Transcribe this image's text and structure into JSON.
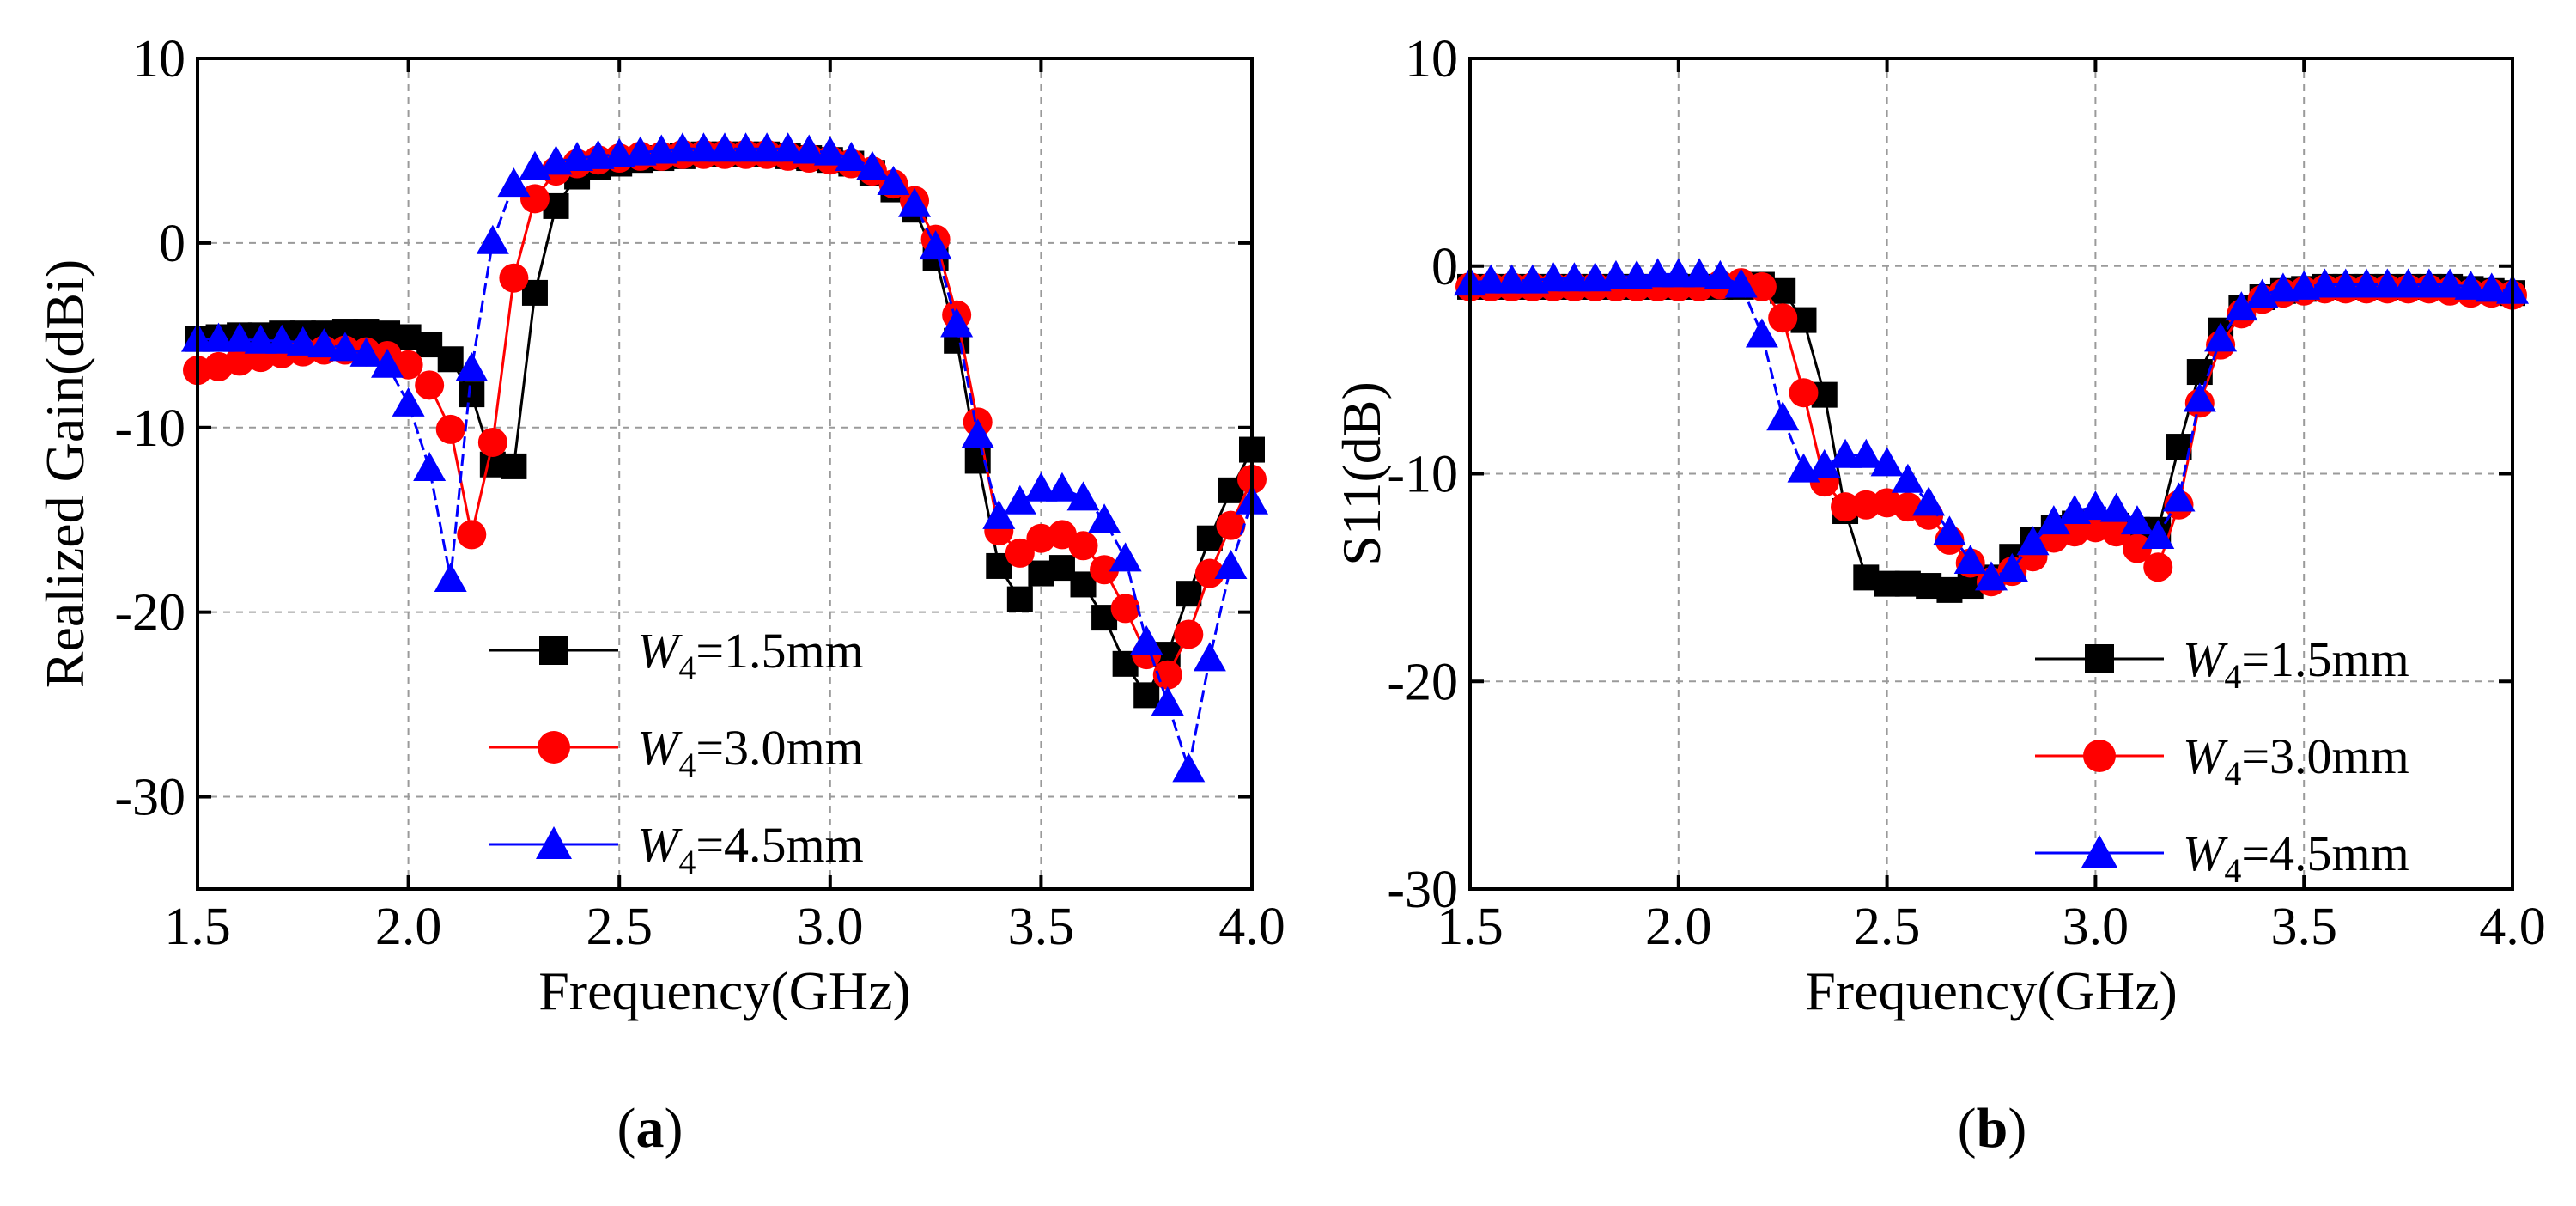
{
  "chart_data": [
    {
      "type": "line",
      "panel_label": "(a)",
      "panel_letter": "a",
      "xlabel": "Frequency(GHz)",
      "ylabel": "Realized Gain(dBi)",
      "xlim": [
        1.5,
        4.0
      ],
      "ylim": [
        -35,
        10
      ],
      "xticks": [
        "1.5",
        "2.0",
        "2.5",
        "3.0",
        "3.5",
        "4.0"
      ],
      "yticks": [
        "10",
        "0",
        "-10",
        "-20",
        "-30"
      ],
      "grid": true,
      "legend_position": "bottom-center",
      "x": [
        1.5,
        1.55,
        1.6,
        1.65,
        1.7,
        1.75,
        1.8,
        1.85,
        1.9,
        1.95,
        2.0,
        2.05,
        2.1,
        2.15,
        2.2,
        2.25,
        2.3,
        2.35,
        2.4,
        2.45,
        2.5,
        2.55,
        2.6,
        2.65,
        2.7,
        2.75,
        2.8,
        2.85,
        2.9,
        2.95,
        3.0,
        3.05,
        3.1,
        3.15,
        3.2,
        3.25,
        3.3,
        3.35,
        3.4,
        3.45,
        3.5,
        3.55,
        3.6,
        3.65,
        3.7,
        3.75,
        3.8,
        3.85,
        3.9,
        3.95,
        4.0
      ],
      "series": [
        {
          "label_var": "W",
          "label_sub": "4",
          "label_value": "=1.5mm",
          "color": "#000000",
          "marker": "square",
          "values": [
            -5.2,
            -5.1,
            -5.0,
            -5.0,
            -4.9,
            -4.9,
            -4.9,
            -4.8,
            -4.8,
            -4.9,
            -5.1,
            -5.5,
            -6.3,
            -8.2,
            -12.0,
            -12.1,
            -2.7,
            2.0,
            3.6,
            4.1,
            4.3,
            4.5,
            4.6,
            4.7,
            4.8,
            4.8,
            4.8,
            4.8,
            4.7,
            4.6,
            4.5,
            4.3,
            3.8,
            2.9,
            1.8,
            -0.8,
            -5.3,
            -11.8,
            -17.5,
            -19.3,
            -17.9,
            -17.6,
            -18.5,
            -20.3,
            -22.8,
            -24.5,
            -22.3,
            -19.0,
            -16.0,
            -13.4,
            -11.2
          ]
        },
        {
          "label_var": "W",
          "label_sub": "4",
          "label_value": "=3.0mm",
          "color": "#ff0000",
          "marker": "circle",
          "values": [
            -6.9,
            -6.7,
            -6.4,
            -6.2,
            -6.0,
            -5.9,
            -5.8,
            -5.8,
            -5.9,
            -6.1,
            -6.6,
            -7.7,
            -10.1,
            -15.8,
            -10.8,
            -1.9,
            2.4,
            3.9,
            4.3,
            4.5,
            4.6,
            4.7,
            4.7,
            4.8,
            4.8,
            4.8,
            4.8,
            4.8,
            4.7,
            4.6,
            4.5,
            4.3,
            3.9,
            3.2,
            2.3,
            0.2,
            -3.9,
            -9.7,
            -15.6,
            -16.8,
            -16.0,
            -15.8,
            -16.4,
            -17.7,
            -19.8,
            -22.3,
            -23.4,
            -21.2,
            -17.9,
            -15.3,
            -12.8
          ]
        },
        {
          "label_var": "W",
          "label_sub": "4",
          "label_value": "=4.5mm",
          "color": "#0000ff",
          "marker": "triangle",
          "values": [
            -5.2,
            -5.2,
            -5.2,
            -5.3,
            -5.3,
            -5.4,
            -5.5,
            -5.7,
            -6.0,
            -6.6,
            -8.7,
            -12.2,
            -18.2,
            -6.8,
            0.1,
            3.2,
            4.1,
            4.4,
            4.6,
            4.7,
            4.8,
            4.9,
            5.0,
            5.1,
            5.1,
            5.1,
            5.1,
            5.1,
            5.1,
            5.0,
            4.9,
            4.6,
            4.1,
            3.3,
            2.1,
            -0.2,
            -4.4,
            -10.4,
            -14.8,
            -14.0,
            -13.3,
            -13.3,
            -13.8,
            -15.0,
            -17.1,
            -21.6,
            -24.9,
            -28.5,
            -22.5,
            -17.5,
            -14.0
          ]
        }
      ]
    },
    {
      "type": "line",
      "panel_label": "(b)",
      "panel_letter": "b",
      "xlabel": "Frequency(GHz)",
      "ylabel": "S11(dB)",
      "xlim": [
        1.5,
        4.0
      ],
      "ylim": [
        -30,
        10
      ],
      "xticks": [
        "1.5",
        "2.0",
        "2.5",
        "3.0",
        "3.5",
        "4.0"
      ],
      "yticks": [
        "10",
        "0",
        "-10",
        "-20",
        "-30"
      ],
      "grid": true,
      "legend_position": "bottom-right",
      "x": [
        1.5,
        1.55,
        1.6,
        1.65,
        1.7,
        1.75,
        1.8,
        1.85,
        1.9,
        1.95,
        2.0,
        2.05,
        2.1,
        2.15,
        2.2,
        2.25,
        2.3,
        2.35,
        2.4,
        2.45,
        2.5,
        2.55,
        2.6,
        2.65,
        2.7,
        2.75,
        2.8,
        2.85,
        2.9,
        2.95,
        3.0,
        3.05,
        3.1,
        3.15,
        3.2,
        3.25,
        3.3,
        3.35,
        3.4,
        3.45,
        3.5,
        3.55,
        3.6,
        3.65,
        3.7,
        3.75,
        3.8,
        3.85,
        3.9,
        3.95,
        4.0
      ],
      "series": [
        {
          "label_var": "W",
          "label_sub": "4",
          "label_value": "=1.5mm",
          "color": "#000000",
          "marker": "square",
          "values": [
            -1.0,
            -1.0,
            -1.0,
            -1.0,
            -1.0,
            -1.0,
            -1.0,
            -1.0,
            -1.0,
            -1.0,
            -1.0,
            -1.0,
            -1.0,
            -1.0,
            -0.9,
            -1.2,
            -2.6,
            -6.2,
            -11.8,
            -15.0,
            -15.3,
            -15.3,
            -15.4,
            -15.6,
            -15.4,
            -15.0,
            -14.0,
            -13.2,
            -12.6,
            -12.4,
            -12.4,
            -12.5,
            -12.7,
            -12.7,
            -8.7,
            -5.1,
            -3.1,
            -2.0,
            -1.5,
            -1.2,
            -1.1,
            -1.0,
            -1.0,
            -1.0,
            -1.0,
            -1.0,
            -1.0,
            -1.0,
            -1.1,
            -1.2,
            -1.3
          ]
        },
        {
          "label_var": "W",
          "label_sub": "4",
          "label_value": "=3.0mm",
          "color": "#ff0000",
          "marker": "circle",
          "values": [
            -1.0,
            -1.0,
            -1.0,
            -1.0,
            -1.0,
            -1.0,
            -1.0,
            -1.0,
            -1.0,
            -1.0,
            -1.0,
            -1.0,
            -0.9,
            -0.8,
            -1.0,
            -2.5,
            -6.1,
            -10.4,
            -11.6,
            -11.5,
            -11.4,
            -11.6,
            -12.0,
            -13.2,
            -14.3,
            -15.2,
            -14.7,
            -14.0,
            -13.1,
            -12.8,
            -12.6,
            -12.8,
            -13.6,
            -14.5,
            -11.5,
            -6.6,
            -3.8,
            -2.3,
            -1.6,
            -1.3,
            -1.2,
            -1.1,
            -1.1,
            -1.1,
            -1.1,
            -1.1,
            -1.1,
            -1.2,
            -1.3,
            -1.3,
            -1.4
          ]
        },
        {
          "label_var": "W",
          "label_sub": "4",
          "label_value": "=4.5mm",
          "color": "#0000ff",
          "marker": "triangle",
          "values": [
            -0.8,
            -0.7,
            -0.7,
            -0.7,
            -0.6,
            -0.6,
            -0.6,
            -0.5,
            -0.5,
            -0.4,
            -0.4,
            -0.4,
            -0.5,
            -0.9,
            -3.3,
            -7.3,
            -9.8,
            -9.6,
            -9.1,
            -9.1,
            -9.5,
            -10.3,
            -11.4,
            -12.8,
            -14.2,
            -15.0,
            -14.6,
            -13.3,
            -12.3,
            -11.8,
            -11.6,
            -11.7,
            -12.3,
            -13.0,
            -11.2,
            -6.4,
            -3.5,
            -2.0,
            -1.4,
            -1.1,
            -1.0,
            -0.9,
            -0.9,
            -0.9,
            -0.9,
            -0.9,
            -0.9,
            -0.9,
            -1.0,
            -1.1,
            -1.2
          ]
        }
      ]
    }
  ]
}
